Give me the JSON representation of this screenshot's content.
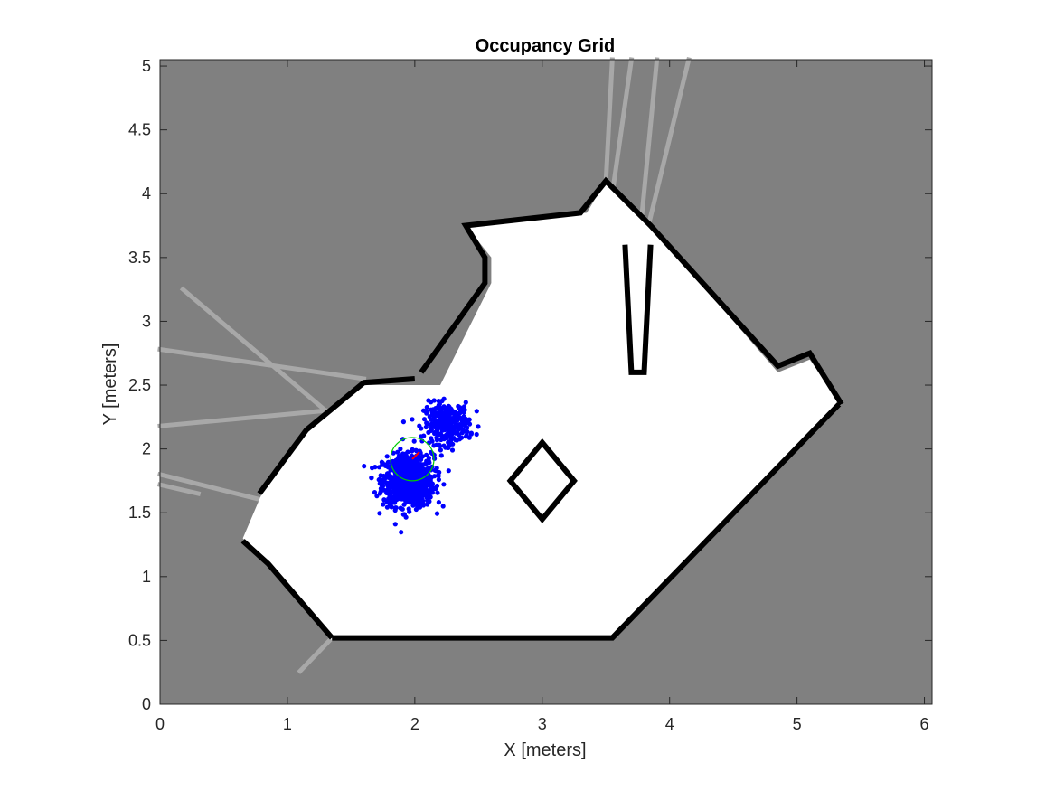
{
  "chart_data": {
    "type": "scatter",
    "title": "Occupancy Grid",
    "xlabel": "X [meters]",
    "ylabel": "Y [meters]",
    "xlim": [
      0,
      6.06
    ],
    "ylim": [
      0,
      5.05
    ],
    "xticks": [
      "0",
      "1",
      "2",
      "3",
      "4",
      "5",
      "6"
    ],
    "yticks": [
      "0",
      "0.5",
      "1",
      "1.5",
      "2",
      "2.5",
      "3",
      "3.5",
      "4",
      "4.5",
      "5"
    ],
    "grid": false,
    "background_color": "#808080",
    "free_color": "#ffffff",
    "occupied_color": "#000000",
    "free_region": [
      [
        1.35,
        0.5
      ],
      [
        3.55,
        0.5
      ],
      [
        5.35,
        2.35
      ],
      [
        5.1,
        2.7
      ],
      [
        4.85,
        2.6
      ],
      [
        3.85,
        3.75
      ],
      [
        3.5,
        4.1
      ],
      [
        3.35,
        3.85
      ],
      [
        2.4,
        3.75
      ],
      [
        2.6,
        3.5
      ],
      [
        2.6,
        3.3
      ],
      [
        2.2,
        2.5
      ],
      [
        1.6,
        2.5
      ],
      [
        1.15,
        2.15
      ],
      [
        0.8,
        1.65
      ],
      [
        0.65,
        1.3
      ],
      [
        0.85,
        1.1
      ]
    ],
    "walls": [
      [
        [
          1.35,
          0.52
        ],
        [
          3.55,
          0.52
        ],
        [
          5.33,
          2.35
        ]
      ],
      [
        [
          1.35,
          0.52
        ],
        [
          0.85,
          1.1
        ],
        [
          0.65,
          1.28
        ]
      ],
      [
        [
          0.78,
          1.65
        ],
        [
          1.15,
          2.15
        ],
        [
          1.6,
          2.52
        ],
        [
          2.0,
          2.55
        ]
      ],
      [
        [
          2.05,
          2.6
        ],
        [
          2.55,
          3.3
        ],
        [
          2.55,
          3.5
        ],
        [
          2.4,
          3.75
        ],
        [
          3.3,
          3.85
        ],
        [
          3.5,
          4.1
        ],
        [
          3.85,
          3.75
        ],
        [
          4.85,
          2.65
        ],
        [
          5.1,
          2.75
        ],
        [
          5.35,
          2.35
        ]
      ],
      [
        [
          3.65,
          3.6
        ],
        [
          3.7,
          2.6
        ],
        [
          3.8,
          2.6
        ],
        [
          3.85,
          3.6
        ]
      ]
    ],
    "obstacle": [
      [
        3.0,
        2.05
      ],
      [
        3.25,
        1.75
      ],
      [
        3.0,
        1.45
      ],
      [
        2.75,
        1.75
      ]
    ],
    "rays": [
      {
        "from": [
          0.18,
          3.25
        ],
        "to": [
          1.3,
          2.3
        ]
      },
      {
        "from": [
          0.0,
          2.78
        ],
        "to": [
          1.6,
          2.55
        ]
      },
      {
        "from": [
          0.0,
          2.18
        ],
        "to": [
          1.3,
          2.3
        ]
      },
      {
        "from": [
          0.0,
          1.8
        ],
        "to": [
          0.8,
          1.6
        ]
      },
      {
        "from": [
          0.0,
          1.72
        ],
        "to": [
          0.3,
          1.65
        ]
      },
      {
        "from": [
          1.35,
          0.52
        ],
        "to": [
          1.1,
          0.26
        ]
      },
      {
        "from": [
          3.5,
          4.1
        ],
        "to": [
          3.55,
          5.05
        ]
      },
      {
        "from": [
          3.7,
          3.2
        ],
        "to": [
          4.15,
          5.05
        ]
      },
      {
        "from": [
          3.75,
          3.5
        ],
        "to": [
          3.9,
          5.05
        ]
      },
      {
        "from": [
          3.55,
          4.0
        ],
        "to": [
          3.7,
          5.05
        ]
      }
    ],
    "series": [
      {
        "values": {
          "cx": 1.95,
          "cy": 1.75,
          "sx": 0.1,
          "sy": 0.1,
          "n": 900
        },
        "color": "#0000ff"
      },
      {
        "values": {
          "cx": 2.25,
          "cy": 2.2,
          "sx": 0.09,
          "sy": 0.08,
          "n": 300
        },
        "color": "#0000ff"
      }
    ],
    "robot_pose": {
      "x": 1.98,
      "y": 1.92,
      "radius": 0.17,
      "heading_deg": 45,
      "circle_color": "#00cc00",
      "heading_color": "#ff0000"
    }
  }
}
